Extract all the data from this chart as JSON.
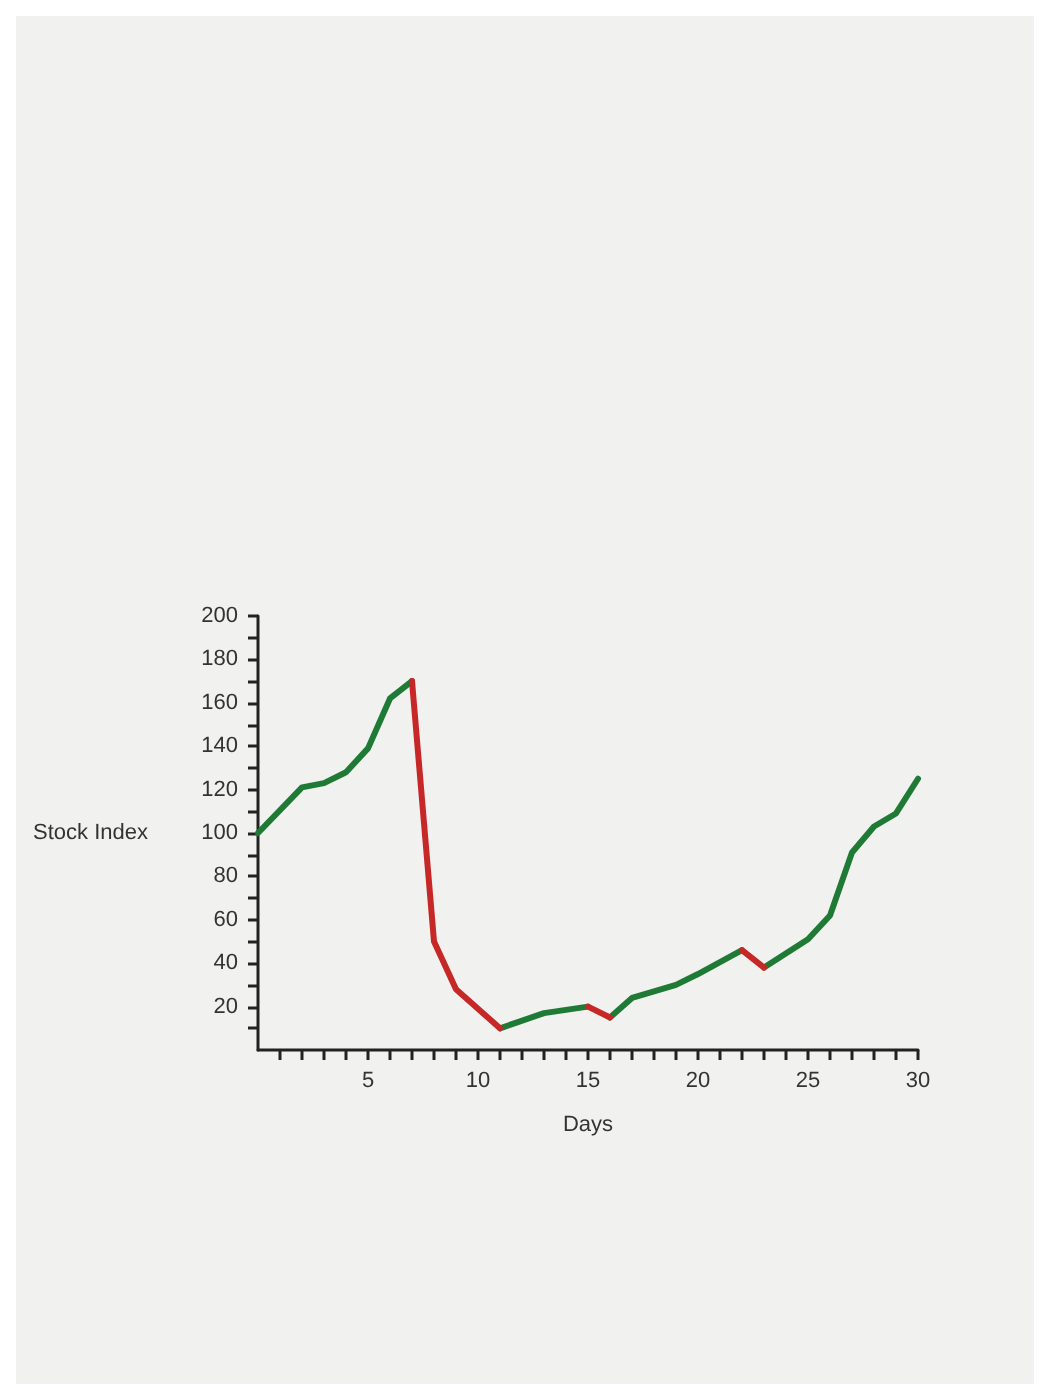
{
  "chart_data": {
    "type": "line",
    "xlabel": "Days",
    "ylabel": "Stock Index",
    "xlim": [
      0,
      30
    ],
    "ylim": [
      0,
      200
    ],
    "xticks": [
      {
        "value": 1,
        "label": null
      },
      {
        "value": 2,
        "label": null
      },
      {
        "value": 3,
        "label": null
      },
      {
        "value": 4,
        "label": null
      },
      5,
      {
        "value": 6,
        "label": null
      },
      {
        "value": 7,
        "label": null
      },
      {
        "value": 8,
        "label": null
      },
      {
        "value": 9,
        "label": null
      },
      10,
      {
        "value": 11,
        "label": null
      },
      {
        "value": 12,
        "label": null
      },
      {
        "value": 13,
        "label": null
      },
      {
        "value": 14,
        "label": null
      },
      15,
      {
        "value": 16,
        "label": null
      },
      {
        "value": 17,
        "label": null
      },
      {
        "value": 18,
        "label": null
      },
      {
        "value": 19,
        "label": null
      },
      20,
      {
        "value": 21,
        "label": null
      },
      {
        "value": 22,
        "label": null
      },
      {
        "value": 23,
        "label": null
      },
      {
        "value": 24,
        "label": null
      },
      25,
      {
        "value": 26,
        "label": null
      },
      {
        "value": 27,
        "label": null
      },
      {
        "value": 28,
        "label": null
      },
      {
        "value": 29,
        "label": null
      },
      30
    ],
    "yticks": [
      {
        "value": 10,
        "label": null
      },
      20,
      {
        "value": 30,
        "label": null
      },
      40,
      {
        "value": 50,
        "label": null
      },
      60,
      {
        "value": 70,
        "label": null
      },
      80,
      {
        "value": 90,
        "label": null
      },
      100,
      {
        "value": 110,
        "label": null
      },
      120,
      {
        "value": 130,
        "label": null
      },
      140,
      {
        "value": 150,
        "label": null
      },
      160,
      {
        "value": 170,
        "label": null
      },
      180,
      {
        "value": 190,
        "label": null
      },
      200
    ],
    "grid": false,
    "marker": "none",
    "line_style": "solid",
    "series": [
      {
        "color": "#1f7a35",
        "x": [
          0,
          2,
          3,
          4,
          5,
          6,
          7,
          9,
          11,
          13,
          15,
          15.5,
          16,
          17,
          19,
          20,
          22,
          22.5,
          23,
          25,
          26,
          27,
          28,
          29,
          30
        ],
        "values": [
          100,
          121,
          123,
          128,
          139,
          162,
          170,
          null,
          10,
          17,
          20,
          null,
          15,
          24,
          30,
          35,
          46,
          null,
          38,
          51,
          62,
          91,
          103,
          109,
          125
        ]
      },
      {
        "color": "#c62828",
        "x": [
          7,
          8,
          9,
          11,
          13,
          15,
          16,
          19,
          22,
          23
        ],
        "values": [
          170,
          50,
          28,
          10,
          null,
          20,
          15,
          null,
          46,
          38
        ]
      }
    ]
  }
}
